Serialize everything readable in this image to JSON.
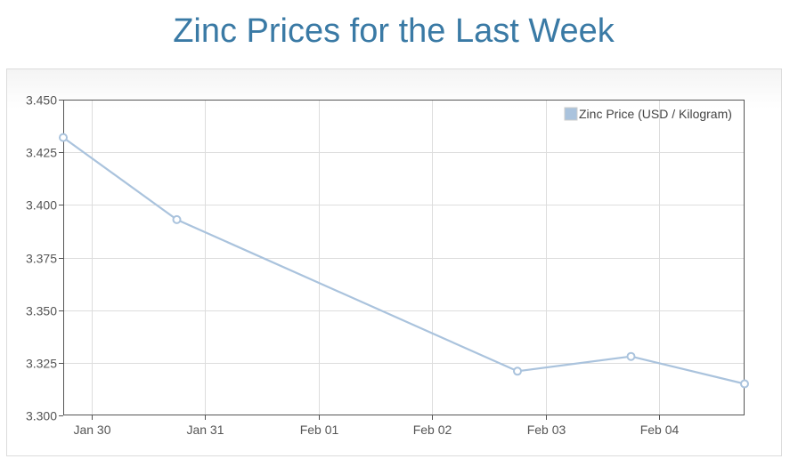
{
  "title": "Zinc Prices for the Last Week",
  "chart_data": {
    "type": "line",
    "title": "Zinc Prices for the Last Week",
    "xlabel": "",
    "ylabel": "",
    "x_ticks": [
      "Jan 30",
      "Jan 31",
      "Feb 01",
      "Feb 02",
      "Feb 03",
      "Feb 04"
    ],
    "y_ticks": [
      "3.300",
      "3.325",
      "3.350",
      "3.375",
      "3.400",
      "3.425",
      "3.450"
    ],
    "ylim": [
      3.3,
      3.45
    ],
    "xlim": [
      "2023-01-29T18:00",
      "2023-02-04T18:00"
    ],
    "grid": true,
    "legend_position": "top-right",
    "series": [
      {
        "name": "Zinc Price (USD / Kilogram)",
        "color": "#aac3dd",
        "points": [
          {
            "x": "2023-01-29T18:00",
            "y": 3.432
          },
          {
            "x": "2023-01-30T18:00",
            "y": 3.393
          },
          {
            "x": "2023-02-02T18:00",
            "y": 3.321
          },
          {
            "x": "2023-02-03T18:00",
            "y": 3.328
          },
          {
            "x": "2023-02-04T18:00",
            "y": 3.315
          }
        ]
      }
    ]
  }
}
